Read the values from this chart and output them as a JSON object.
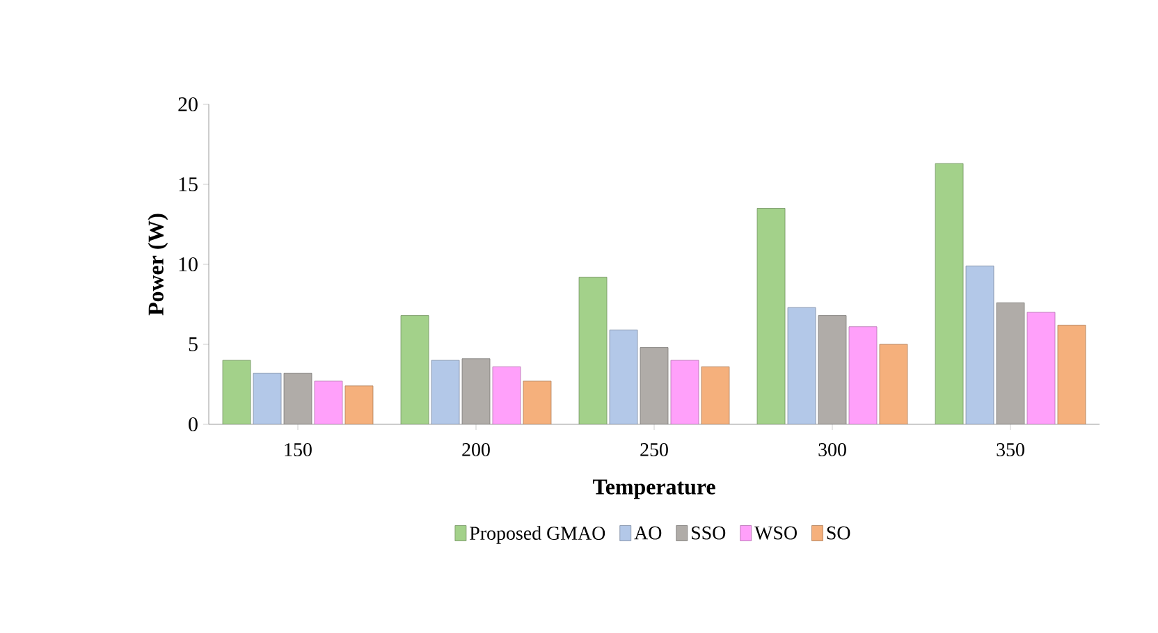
{
  "chart_data": {
    "type": "bar",
    "xlabel": "Temperature",
    "ylabel": "Power (W)",
    "categories": [
      "150",
      "200",
      "250",
      "300",
      "350"
    ],
    "series": [
      {
        "name": "Proposed GMAO",
        "color": "#a3d18a",
        "values": [
          4.0,
          6.8,
          9.2,
          13.5,
          16.3
        ]
      },
      {
        "name": "AO",
        "color": "#b3c8e8",
        "values": [
          3.2,
          4.0,
          5.9,
          7.3,
          9.9
        ]
      },
      {
        "name": "SSO",
        "color": "#b0aca8",
        "values": [
          3.2,
          4.1,
          4.8,
          6.8,
          7.6
        ]
      },
      {
        "name": "WSO",
        "color": "#ffa0fa",
        "values": [
          2.7,
          3.6,
          4.0,
          6.1,
          7.0
        ]
      },
      {
        "name": "SO",
        "color": "#f5b07c",
        "values": [
          2.4,
          2.7,
          3.6,
          5.0,
          6.2
        ]
      }
    ],
    "ylim": [
      0,
      20
    ],
    "yticks": [
      0,
      5,
      10,
      15,
      20
    ],
    "grid": false,
    "legend": "bottom"
  }
}
